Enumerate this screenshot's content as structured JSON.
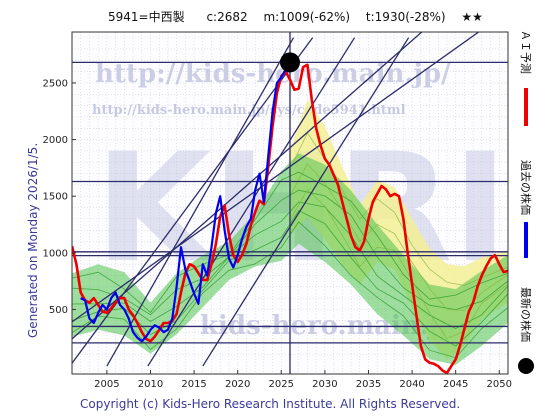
{
  "header": {
    "code_name": "5941=中西製",
    "current": "c:2682",
    "max": "m:1009(-62%)",
    "target": "t:1930(-28%)",
    "stars": "★★"
  },
  "watermarks": {
    "url_main": "http://kids-hero.main.jp/",
    "url_page": "http://kids-hero.main.jp/sys/code5941.html",
    "url_bottom": "kids-hero.main.jp",
    "big": "KHRI"
  },
  "side_label": "Generated on Monday 2026/1/5.",
  "footer": "Copyright (c) Kids-Hero Research Institute. All Rights Reserved.",
  "legend": [
    {
      "label": "ＡＩ予測",
      "color": "#ee0000"
    },
    {
      "label": "過去の株価",
      "color": "#0000ee"
    },
    {
      "label": "最新の株価",
      "color": "#000000"
    }
  ],
  "colors": {
    "grid": "#b9bcd6",
    "support_lines": "#2c2c6a",
    "cloud_green": "#4ec24e",
    "cloud_yellow": "#f3ee95"
  },
  "chart_data": {
    "type": "line",
    "xlim": [
      2001,
      2051
    ],
    "ylim": [
      -70,
      2950
    ],
    "x_ticks": [
      2005,
      2010,
      2015,
      2020,
      2025,
      2030,
      2035,
      2040,
      2045,
      2050
    ],
    "y_ticks": [
      500,
      1000,
      1500,
      2000,
      2500
    ],
    "horizontal_levels": [
      2682,
      1630,
      1009,
      975,
      350,
      205
    ],
    "vertical_marker_year": 2026,
    "latest_point": {
      "x": 2026.0,
      "y": 2682
    },
    "diagonal_lines": [
      {
        "p1": [
          2005.0,
          0
        ],
        "p2": [
          2026.4,
          2900
        ]
      },
      {
        "p1": [
          2001.0,
          25
        ],
        "p2": [
          2028.6,
          2900
        ]
      },
      {
        "p1": [
          2009.7,
          0
        ],
        "p2": [
          2033.4,
          2900
        ]
      },
      {
        "p1": [
          2016.0,
          0
        ],
        "p2": [
          2039.6,
          2900
        ]
      },
      {
        "p1": [
          2001.0,
          240
        ],
        "p2": [
          2046.0,
          3280
        ]
      },
      {
        "p1": [
          2001.0,
          390
        ],
        "p2": [
          2050.0,
          3080
        ]
      }
    ],
    "series": [
      {
        "name": "過去の株価",
        "color": "#0000ee",
        "x": [
          2002.0,
          2002.5,
          2003.0,
          2003.5,
          2004.0,
          2004.5,
          2005.0,
          2005.5,
          2006.0,
          2006.5,
          2007.0,
          2007.5,
          2008.0,
          2008.5,
          2009.0,
          2009.5,
          2010.0,
          2010.5,
          2011.0,
          2011.5,
          2012.0,
          2012.5,
          2013.0,
          2013.5,
          2014.0,
          2014.5,
          2015.0,
          2015.5,
          2016.0,
          2016.5,
          2017.0,
          2017.5,
          2018.0,
          2018.5,
          2019.0,
          2019.5,
          2020.0,
          2020.5,
          2021.0,
          2021.5,
          2022.0,
          2022.5,
          2023.0,
          2023.5,
          2024.0,
          2024.5,
          2025.0,
          2025.5,
          2026.0
        ],
        "y": [
          600,
          580,
          420,
          380,
          470,
          540,
          500,
          600,
          650,
          540,
          500,
          420,
          300,
          250,
          220,
          260,
          320,
          360,
          340,
          300,
          320,
          420,
          700,
          1050,
          850,
          750,
          640,
          550,
          900,
          800,
          1050,
          1350,
          1500,
          1200,
          950,
          870,
          980,
          1120,
          1230,
          1300,
          1550,
          1700,
          1450,
          1850,
          2250,
          2500,
          2550,
          2620,
          2682
        ]
      },
      {
        "name": "ＡＩ予測",
        "color": "#ee0000",
        "x": [
          2001.0,
          2001.5,
          2002.0,
          2002.5,
          2003.0,
          2003.5,
          2004.0,
          2004.5,
          2005.0,
          2005.5,
          2006.0,
          2006.5,
          2007.0,
          2007.5,
          2008.0,
          2008.5,
          2009.0,
          2009.5,
          2010.0,
          2010.5,
          2011.0,
          2011.5,
          2012.0,
          2012.5,
          2013.0,
          2013.5,
          2014.0,
          2014.5,
          2015.0,
          2015.5,
          2016.0,
          2016.5,
          2017.0,
          2017.5,
          2018.0,
          2018.5,
          2019.0,
          2019.5,
          2020.0,
          2020.5,
          2021.0,
          2021.5,
          2022.0,
          2022.5,
          2023.0,
          2023.5,
          2024.0,
          2024.5,
          2025.0,
          2025.5,
          2026.0,
          2026.5,
          2027.0,
          2027.5,
          2028.0,
          2028.5,
          2029.0,
          2029.5,
          2030.0,
          2030.5,
          2031.0,
          2031.5,
          2032.0,
          2032.5,
          2033.0,
          2033.5,
          2034.0,
          2034.5,
          2035.0,
          2035.5,
          2036.0,
          2036.5,
          2037.0,
          2037.5,
          2038.0,
          2038.5,
          2039.0,
          2039.5,
          2040.0,
          2040.5,
          2041.0,
          2041.5,
          2042.0,
          2042.5,
          2043.0,
          2043.5,
          2044.0,
          2044.5,
          2045.0,
          2045.5,
          2046.0,
          2046.5,
          2047.0,
          2047.5,
          2048.0,
          2048.5,
          2049.0,
          2049.5,
          2050.0,
          2050.5,
          2051.0
        ],
        "y": [
          1060,
          900,
          650,
          580,
          560,
          600,
          540,
          480,
          470,
          510,
          560,
          600,
          600,
          500,
          450,
          380,
          300,
          240,
          220,
          260,
          320,
          380,
          380,
          400,
          460,
          650,
          820,
          900,
          880,
          820,
          760,
          760,
          900,
          1080,
          1320,
          1420,
          1160,
          980,
          920,
          980,
          1080,
          1240,
          1360,
          1460,
          1430,
          1760,
          2120,
          2410,
          2560,
          2600,
          2530,
          2440,
          2450,
          2640,
          2660,
          2350,
          2100,
          1950,
          1830,
          1780,
          1690,
          1600,
          1450,
          1300,
          1150,
          1050,
          1020,
          1100,
          1300,
          1450,
          1520,
          1590,
          1560,
          1500,
          1520,
          1500,
          1300,
          1000,
          720,
          450,
          180,
          60,
          30,
          20,
          0,
          -40,
          -60,
          0,
          60,
          180,
          330,
          480,
          560,
          700,
          800,
          880,
          950,
          980,
          900,
          830,
          840
        ]
      }
    ],
    "bands": {
      "green_upper": [
        [
          2001,
          820
        ],
        [
          2004,
          900
        ],
        [
          2007,
          830
        ],
        [
          2010,
          560
        ],
        [
          2013,
          820
        ],
        [
          2016,
          980
        ],
        [
          2019,
          1100
        ],
        [
          2022,
          1350
        ],
        [
          2025,
          1720
        ],
        [
          2027,
          1880
        ],
        [
          2030,
          1780
        ],
        [
          2033,
          1550
        ],
        [
          2036,
          1250
        ],
        [
          2039,
          980
        ],
        [
          2042,
          720
        ],
        [
          2045,
          680
        ],
        [
          2048,
          840
        ],
        [
          2051,
          980
        ]
      ],
      "green_lower": [
        [
          2001,
          260
        ],
        [
          2004,
          320
        ],
        [
          2007,
          270
        ],
        [
          2010,
          110
        ],
        [
          2013,
          280
        ],
        [
          2016,
          520
        ],
        [
          2019,
          760
        ],
        [
          2022,
          880
        ],
        [
          2025,
          930
        ],
        [
          2027,
          1080
        ],
        [
          2030,
          920
        ],
        [
          2033,
          720
        ],
        [
          2036,
          460
        ],
        [
          2039,
          270
        ],
        [
          2042,
          60
        ],
        [
          2045,
          10
        ],
        [
          2048,
          180
        ],
        [
          2051,
          380
        ]
      ],
      "yellow_upper": [
        [
          2026,
          1900
        ],
        [
          2028,
          2350
        ],
        [
          2030,
          2120
        ],
        [
          2032,
          1760
        ],
        [
          2034,
          1420
        ],
        [
          2036,
          1640
        ],
        [
          2038,
          1580
        ],
        [
          2040,
          1300
        ],
        [
          2042,
          1040
        ],
        [
          2044,
          900
        ],
        [
          2046,
          880
        ],
        [
          2048,
          960
        ],
        [
          2051,
          1020
        ]
      ],
      "yellow_lower": [
        [
          2026,
          1150
        ],
        [
          2028,
          1320
        ],
        [
          2030,
          1120
        ],
        [
          2032,
          900
        ],
        [
          2034,
          720
        ],
        [
          2036,
          920
        ],
        [
          2038,
          850
        ],
        [
          2040,
          520
        ],
        [
          2042,
          230
        ],
        [
          2044,
          60
        ],
        [
          2046,
          180
        ],
        [
          2048,
          420
        ],
        [
          2051,
          560
        ]
      ]
    }
  }
}
